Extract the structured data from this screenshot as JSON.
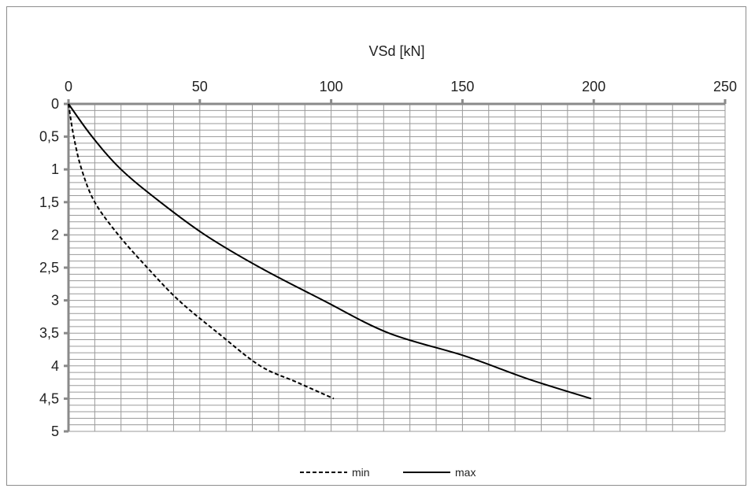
{
  "chart_data": {
    "type": "line",
    "title": "",
    "xlabel": "VSd [kN]",
    "ylabel": "",
    "xlim": [
      0,
      250
    ],
    "ylim": [
      0,
      5
    ],
    "y_inverted": true,
    "x_axis_position": "top",
    "grid": true,
    "legend_position": "bottom",
    "x_ticks": [
      "0",
      "50",
      "100",
      "150",
      "200",
      "250"
    ],
    "y_ticks": [
      "0",
      "0,5",
      "1",
      "1,5",
      "2",
      "2,5",
      "3",
      "3,5",
      "4",
      "4,5",
      "5"
    ],
    "series": [
      {
        "name": "min",
        "line_style": "dashed",
        "color": "#000000",
        "points": [
          [
            0,
            0
          ],
          [
            2,
            0.5
          ],
          [
            5,
            1
          ],
          [
            10,
            1.5
          ],
          [
            19,
            2
          ],
          [
            30,
            2.5
          ],
          [
            42,
            3
          ],
          [
            57,
            3.5
          ],
          [
            73,
            4
          ],
          [
            87,
            4.25
          ],
          [
            101,
            4.5
          ]
        ]
      },
      {
        "name": "max",
        "line_style": "solid",
        "color": "#000000",
        "points": [
          [
            0,
            0
          ],
          [
            9,
            0.5
          ],
          [
            20,
            1
          ],
          [
            35,
            1.5
          ],
          [
            52,
            2
          ],
          [
            73,
            2.5
          ],
          [
            97,
            3
          ],
          [
            122,
            3.5
          ],
          [
            151,
            3.85
          ],
          [
            175,
            4.2
          ],
          [
            199,
            4.5
          ]
        ]
      }
    ]
  }
}
